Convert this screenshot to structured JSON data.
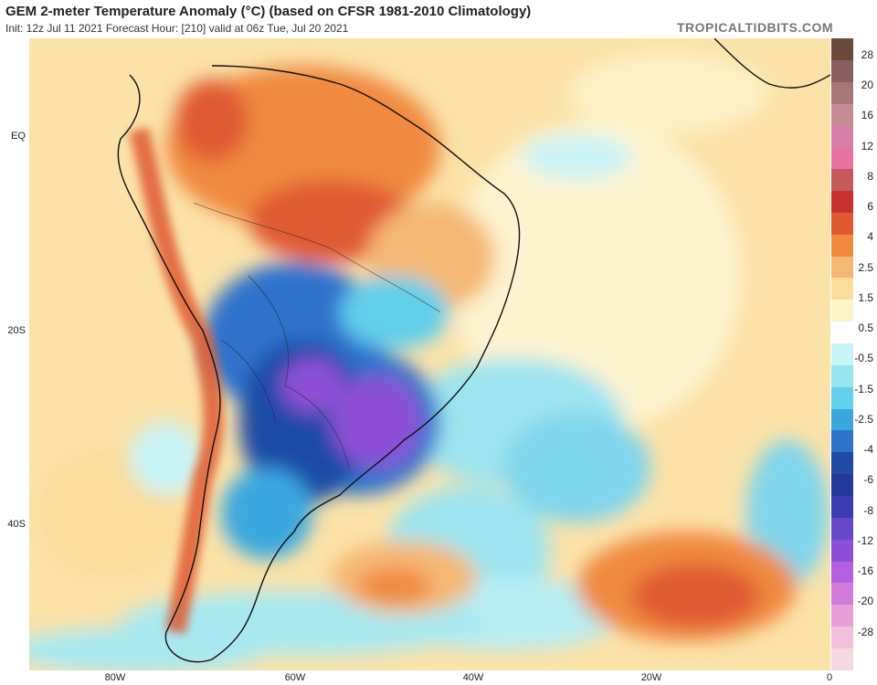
{
  "header": {
    "title": "GEM 2-meter Temperature Anomaly (°C) (based on CFSR 1981-2010 Climatology)",
    "subtitle": "Init: 12z Jul 11 2021   Forecast Hour: [210]   valid at 06z Tue, Jul 20 2021",
    "brand": "TROPICALTIDBITS.COM"
  },
  "axes": {
    "lat_labels": [
      "EQ",
      "20S",
      "40S"
    ],
    "lon_labels": [
      "80W",
      "60W",
      "40W",
      "20W",
      "0"
    ]
  },
  "colorbar": {
    "labels": [
      "28",
      "20",
      "16",
      "12",
      "8",
      "6",
      "4",
      "2.5",
      "1.5",
      "0.5",
      "-0.5",
      "-1.5",
      "-2.5",
      "-4",
      "-6",
      "-8",
      "-12",
      "-16",
      "-20",
      "-28"
    ],
    "colors": [
      "#6b4a3a",
      "#8a5f5f",
      "#a87676",
      "#c58c95",
      "#d87fa8",
      "#e872a0",
      "#c45a5a",
      "#c93030",
      "#e05a30",
      "#f08a40",
      "#f5b873",
      "#f8dd9a",
      "#fdf4c8",
      "#ffffff",
      "#c9f4f6",
      "#96e4ef",
      "#62cfeb",
      "#3aa8df",
      "#2f72cc",
      "#1f4ba6",
      "#203a9a",
      "#3c3db0",
      "#6748c8",
      "#8d4fd7",
      "#b35fe0",
      "#d27bd8",
      "#e79fdc",
      "#f2c0dc",
      "#f6d8e0"
    ]
  }
}
